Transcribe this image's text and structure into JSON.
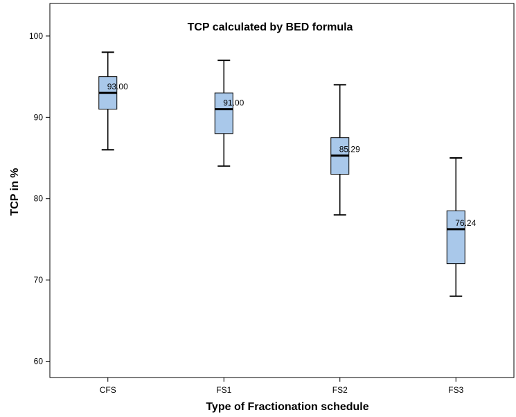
{
  "chart_data": {
    "type": "boxplot",
    "title": "TCP calculated by BED formula",
    "xlabel": "Type of Fractionation schedule",
    "ylabel": "TCP in %",
    "ylim": [
      58,
      104
    ],
    "yticks": [
      60,
      70,
      80,
      90,
      100
    ],
    "grid": false,
    "categories": [
      "CFS",
      "FS1",
      "FS2",
      "FS3"
    ],
    "boxes": [
      {
        "category": "CFS",
        "min": 86,
        "q1": 91,
        "median": 93.0,
        "q3": 95,
        "max": 98,
        "median_label": "93.00"
      },
      {
        "category": "FS1",
        "min": 84,
        "q1": 88,
        "median": 91.0,
        "q3": 93,
        "max": 97,
        "median_label": "91.00"
      },
      {
        "category": "FS2",
        "min": 78,
        "q1": 83,
        "median": 85.29,
        "q3": 87.5,
        "max": 94,
        "median_label": "85.29"
      },
      {
        "category": "FS3",
        "min": 68,
        "q1": 72,
        "median": 76.24,
        "q3": 78.5,
        "max": 85,
        "median_label": "76.24"
      }
    ],
    "box_fill": "#a9c8ea",
    "box_stroke": "#000000"
  }
}
